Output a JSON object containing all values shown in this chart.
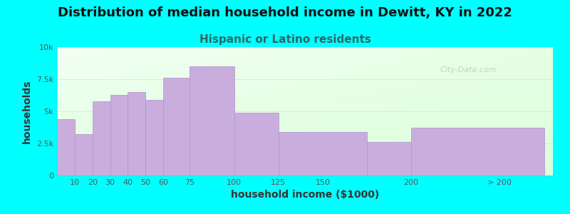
{
  "title": "Distribution of median household income in Dewitt, KY in 2022",
  "subtitle": "Hispanic or Latino residents",
  "xlabel": "household income ($1000)",
  "ylabel": "households",
  "background_outer": "#00FFFF",
  "bar_color": "#c9aedd",
  "bar_edge_color": "#b090cc",
  "bar_lefts": [
    5,
    15,
    25,
    35,
    45,
    55,
    67.5,
    87.5,
    112.5,
    150,
    187.5,
    237.5
  ],
  "bar_widths": [
    10,
    10,
    10,
    10,
    10,
    10,
    15,
    25,
    25,
    50,
    25,
    75
  ],
  "values": [
    4400,
    3200,
    5800,
    6300,
    6500,
    5900,
    7600,
    8500,
    4900,
    3400,
    2600,
    3700
  ],
  "xlim": [
    0,
    280
  ],
  "ylim": [
    0,
    10000
  ],
  "yticks": [
    0,
    2500,
    5000,
    7500,
    10000
  ],
  "ytick_labels": [
    "0",
    "2.5k",
    "5k",
    "7.5k",
    "10k"
  ],
  "xtick_positions": [
    10,
    20,
    30,
    40,
    50,
    60,
    75,
    100,
    125,
    150,
    200,
    250
  ],
  "xtick_labels": [
    "10",
    "20",
    "30",
    "40",
    "50",
    "60",
    "75",
    "100",
    "125",
    "150",
    "200",
    "> 200"
  ],
  "title_fontsize": 13,
  "subtitle_fontsize": 11,
  "axis_label_fontsize": 10,
  "watermark": "City-Data.com",
  "subtitle_color": "#336666",
  "title_color": "#111111",
  "tick_color": "#555555",
  "axis_label_color": "#333333"
}
